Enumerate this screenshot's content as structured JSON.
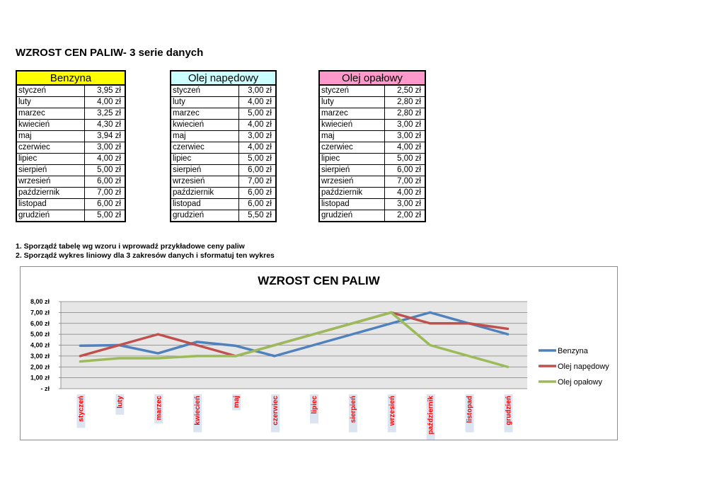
{
  "page": {
    "title": "WZROST CEN PALIW- 3 serie danych",
    "instructions": [
      "1. Sporządź tabelę wg wzoru i wprowadź przykładowe ceny paliw",
      "2. Sporządź wykres liniowy dla 3 zakresów danych i sformatuj ten wykres"
    ]
  },
  "tables": [
    {
      "header": "Benzyna",
      "header_color": "#ffff00",
      "rows": [
        [
          "styczeń",
          "3,95 zł"
        ],
        [
          "luty",
          "4,00 zł"
        ],
        [
          "marzec",
          "3,25 zł"
        ],
        [
          "kwiecień",
          "4,30 zł"
        ],
        [
          "maj",
          "3,94 zł"
        ],
        [
          "czerwiec",
          "3,00 zł"
        ],
        [
          "lipiec",
          "4,00 zł"
        ],
        [
          "sierpień",
          "5,00 zł"
        ],
        [
          "wrzesień",
          "6,00 zł"
        ],
        [
          "październik",
          "7,00 zł"
        ],
        [
          "listopad",
          "6,00 zł"
        ],
        [
          "grudzień",
          "5,00 zł"
        ]
      ]
    },
    {
      "header": "Olej napędowy",
      "header_color": "#ccffff",
      "rows": [
        [
          "styczeń",
          "3,00 zł"
        ],
        [
          "luty",
          "4,00 zł"
        ],
        [
          "marzec",
          "5,00 zł"
        ],
        [
          "kwiecień",
          "4,00 zł"
        ],
        [
          "maj",
          "3,00 zł"
        ],
        [
          "czerwiec",
          "4,00 zł"
        ],
        [
          "lipiec",
          "5,00 zł"
        ],
        [
          "sierpień",
          "6,00 zł"
        ],
        [
          "wrzesień",
          "7,00 zł"
        ],
        [
          "październik",
          "6,00 zł"
        ],
        [
          "listopad",
          "6,00 zł"
        ],
        [
          "grudzień",
          "5,50 zł"
        ]
      ]
    },
    {
      "header": "Olej opałowy",
      "header_color": "#ff99cc",
      "rows": [
        [
          "styczeń",
          "2,50 zł"
        ],
        [
          "luty",
          "2,80 zł"
        ],
        [
          "marzec",
          "2,80 zł"
        ],
        [
          "kwiecień",
          "3,00 zł"
        ],
        [
          "maj",
          "3,00 zł"
        ],
        [
          "czerwiec",
          "4,00 zł"
        ],
        [
          "lipiec",
          "5,00 zł"
        ],
        [
          "sierpień",
          "6,00 zł"
        ],
        [
          "wrzesień",
          "7,00 zł"
        ],
        [
          "październik",
          "4,00 zł"
        ],
        [
          "listopad",
          "3,00 zł"
        ],
        [
          "grudzień",
          "2,00 zł"
        ]
      ]
    }
  ],
  "chart_data": {
    "type": "line",
    "title": "WZROST CEN PALIW",
    "categories": [
      "styczeń",
      "luty",
      "marzec",
      "kwiecień",
      "maj",
      "czerwiec",
      "lipiec",
      "sierpień",
      "wrzesień",
      "październik",
      "listopad",
      "grudzień"
    ],
    "series": [
      {
        "name": "Benzyna",
        "color": "#4f81bd",
        "values": [
          3.95,
          4.0,
          3.25,
          4.3,
          3.94,
          3.0,
          4.0,
          5.0,
          6.0,
          7.0,
          6.0,
          5.0
        ]
      },
      {
        "name": "Olej napędowy",
        "color": "#c0504d",
        "values": [
          3.0,
          4.0,
          5.0,
          4.0,
          3.0,
          4.0,
          5.0,
          6.0,
          7.0,
          6.0,
          6.0,
          5.5
        ]
      },
      {
        "name": "Olej opałowy",
        "color": "#9bbb59",
        "values": [
          2.5,
          2.8,
          2.8,
          3.0,
          3.0,
          4.0,
          5.0,
          6.0,
          7.0,
          4.0,
          3.0,
          2.0
        ]
      }
    ],
    "y_ticks": [
      "8,00 zł",
      "7,00 zł",
      "6,00 zł",
      "5,00 zł",
      "4,00 zł",
      "3,00 zł",
      "2,00 zł",
      "1,00 zł",
      "-   zł"
    ],
    "ylim": [
      0,
      8
    ],
    "grid": true,
    "legend": "right",
    "category_label_color": "#ff0000",
    "plot_background": "#e6e6e6"
  }
}
